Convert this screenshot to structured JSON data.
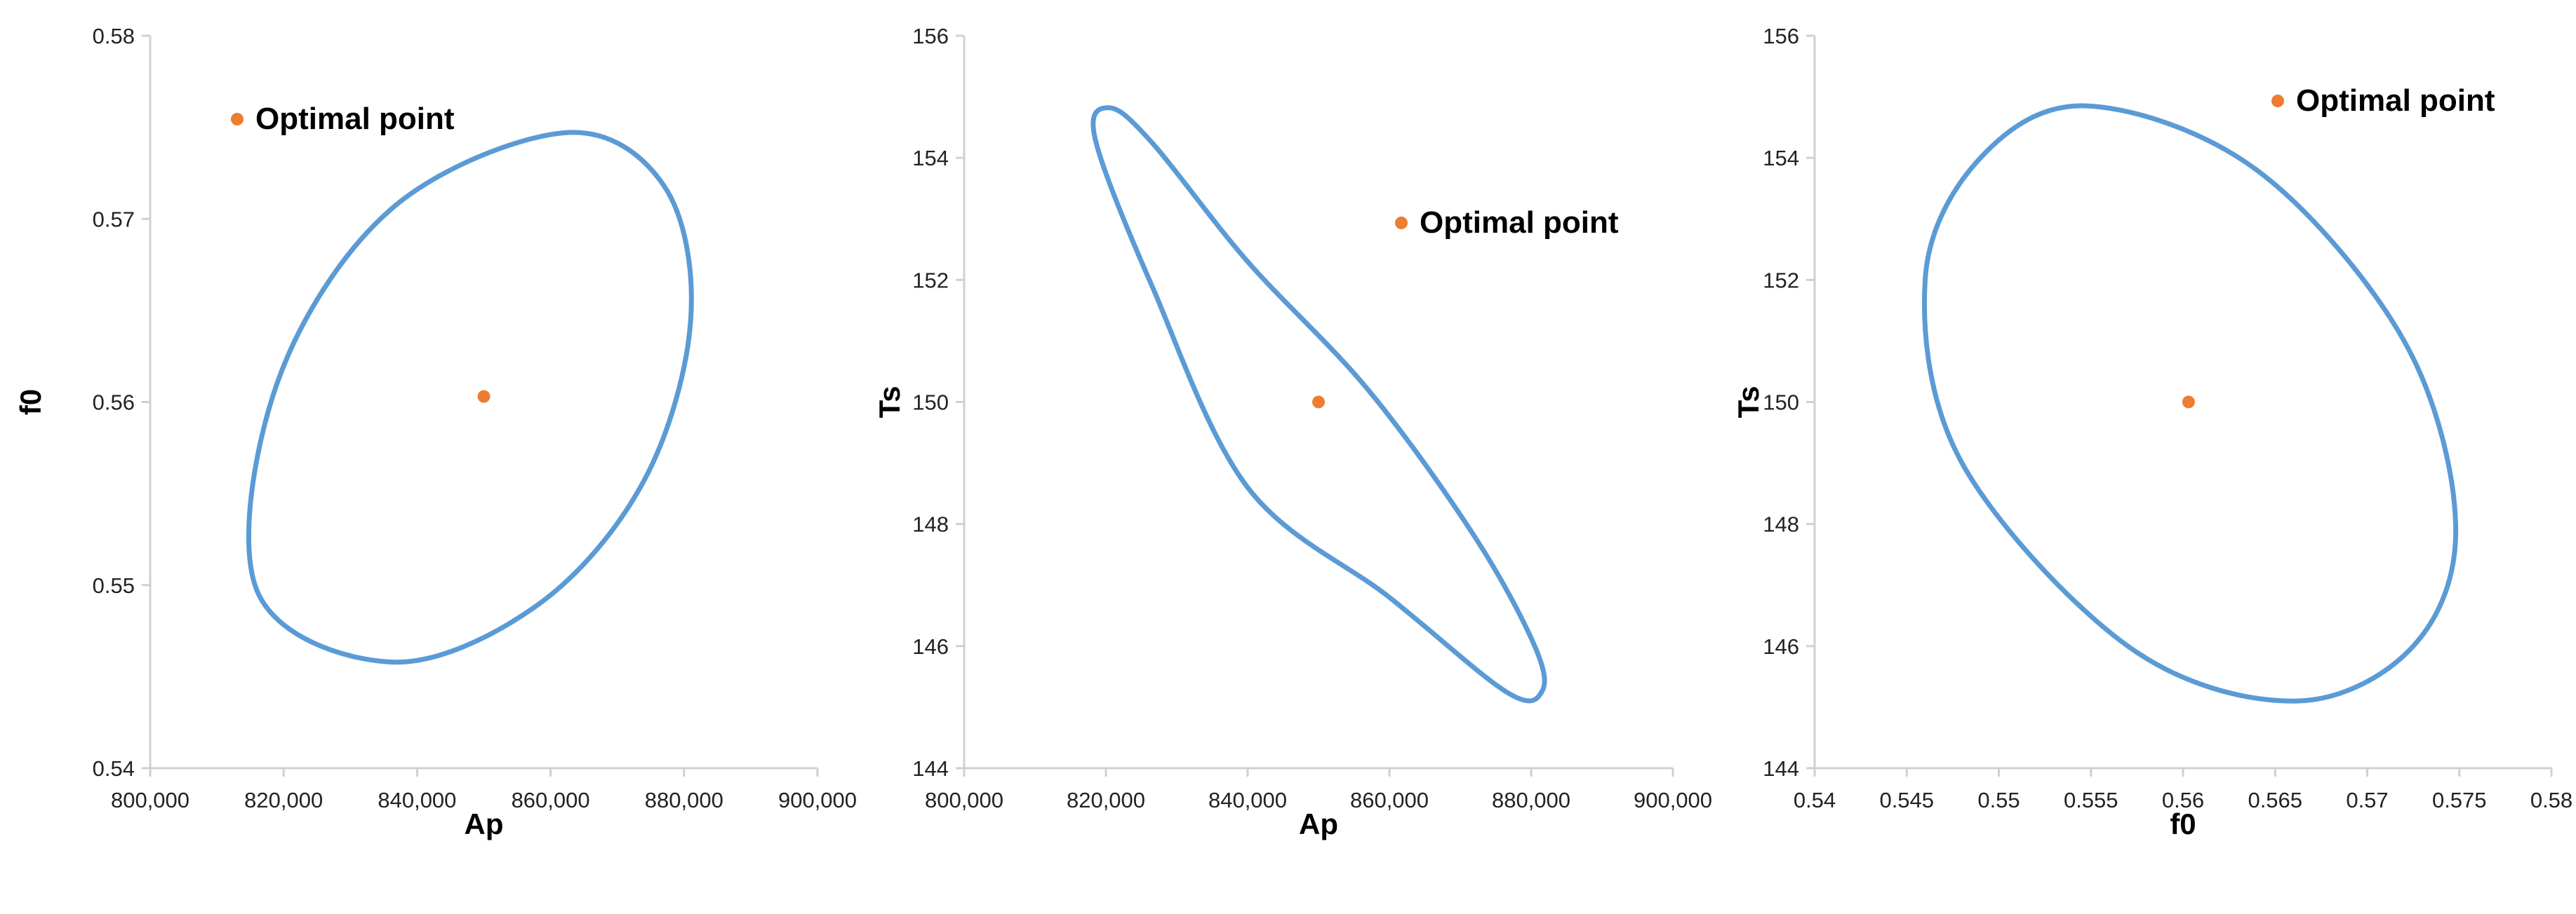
{
  "colors": {
    "ellipse": "#5b9bd5",
    "point": "#ed7d31",
    "axis": "#d0d0d0"
  },
  "legend_label": "Optimal point",
  "chart_data": [
    {
      "type": "scatter",
      "xlabel": "Ap",
      "ylabel": "f0",
      "xlim": [
        800000,
        900000
      ],
      "ylim": [
        0.54,
        0.58
      ],
      "xticks": [
        800000,
        820000,
        840000,
        860000,
        880000,
        900000
      ],
      "xtick_labels": [
        "800,000",
        "820,000",
        "840,000",
        "860,000",
        "880,000",
        "900,000"
      ],
      "yticks": [
        0.54,
        0.55,
        0.56,
        0.57,
        0.58
      ],
      "ytick_labels": [
        "0.54",
        "0.55",
        "0.56",
        "0.57",
        "0.58"
      ],
      "legend_position": "top-left",
      "optimal_point": {
        "x": 850000,
        "y": 0.5603
      },
      "ellipse": [
        [
          881000,
          0.5645
        ],
        [
          874000,
          0.5557
        ],
        [
          858000,
          0.5489
        ],
        [
          836000,
          0.5458
        ],
        [
          816000,
          0.5497
        ],
        [
          819000,
          0.561
        ],
        [
          836000,
          0.5705
        ],
        [
          862000,
          0.5747
        ],
        [
          877000,
          0.5718
        ],
        [
          881000,
          0.5645
        ]
      ]
    },
    {
      "type": "scatter",
      "xlabel": "Ap",
      "ylabel": "Ts",
      "xlim": [
        800000,
        900000
      ],
      "ylim": [
        144,
        156
      ],
      "xticks": [
        800000,
        820000,
        840000,
        860000,
        880000,
        900000
      ],
      "xtick_labels": [
        "800,000",
        "820,000",
        "840,000",
        "860,000",
        "880,000",
        "900,000"
      ],
      "yticks": [
        144,
        146,
        148,
        150,
        152,
        154,
        156
      ],
      "ytick_labels": [
        "144",
        "146",
        "148",
        "150",
        "152",
        "154",
        "156"
      ],
      "legend_position": "top-right",
      "optimal_point": {
        "x": 850000,
        "y": 150.0
      },
      "ellipse": [
        [
          820500,
          154.82
        ],
        [
          818500,
          154.3
        ],
        [
          826500,
          151.9
        ],
        [
          840000,
          148.6
        ],
        [
          860000,
          146.8
        ],
        [
          876500,
          145.25
        ],
        [
          881500,
          145.25
        ],
        [
          880500,
          146.0
        ],
        [
          872000,
          147.8
        ],
        [
          857000,
          150.2
        ],
        [
          840000,
          152.3
        ],
        [
          826500,
          154.25
        ],
        [
          820500,
          154.82
        ]
      ]
    },
    {
      "type": "scatter",
      "xlabel": "f0",
      "ylabel": "Ts",
      "xlim": [
        0.54,
        0.58
      ],
      "ylim": [
        144,
        156
      ],
      "xticks": [
        0.54,
        0.545,
        0.55,
        0.555,
        0.56,
        0.565,
        0.57,
        0.575,
        0.58
      ],
      "xtick_labels": [
        "0.54",
        "0.545",
        "0.55",
        "0.555",
        "0.56",
        "0.565",
        "0.57",
        "0.575",
        "0.58"
      ],
      "yticks": [
        144,
        146,
        148,
        150,
        152,
        154,
        156
      ],
      "ytick_labels": [
        "144",
        "146",
        "148",
        "150",
        "152",
        "154",
        "156"
      ],
      "legend_position": "top-right",
      "optimal_point": {
        "x": 0.5603,
        "y": 150.0
      },
      "ellipse": [
        [
          0.5548,
          154.85
        ],
        [
          0.549,
          154.0
        ],
        [
          0.546,
          152.0
        ],
        [
          0.548,
          149.0
        ],
        [
          0.557,
          146.0
        ],
        [
          0.566,
          145.1
        ],
        [
          0.5725,
          146.0
        ],
        [
          0.5748,
          148.0
        ],
        [
          0.572,
          151.0
        ],
        [
          0.564,
          153.8
        ],
        [
          0.5548,
          154.85
        ]
      ]
    }
  ]
}
